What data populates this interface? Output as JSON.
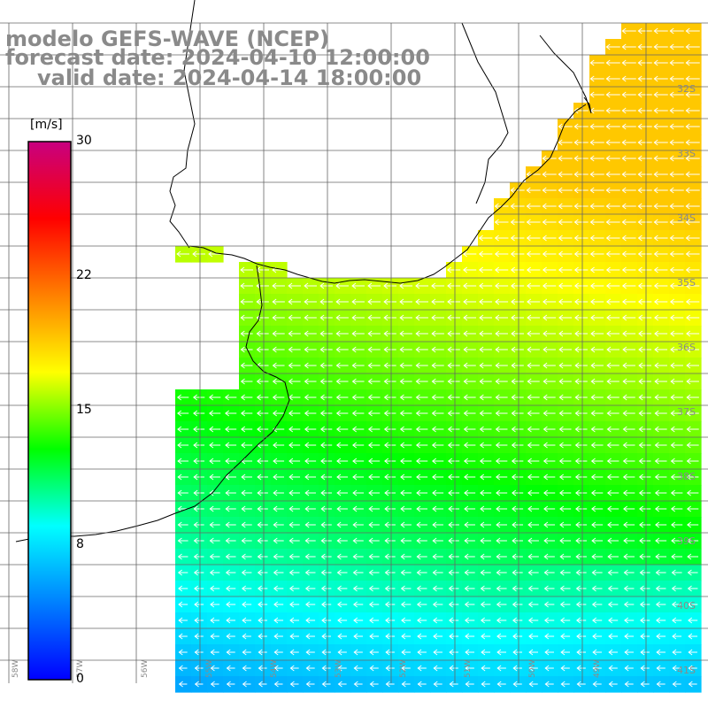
{
  "title": {
    "line1": "modelo GEFS-WAVE (NCEP)",
    "line2": "forecast date: 2024-04-10 12:00:00",
    "line3": "valid date: 2024-04-14 18:00:00"
  },
  "colorbar": {
    "unit": "[m/s]",
    "ticks": [
      "30",
      "22",
      "15",
      "8",
      "0"
    ],
    "tick_values": [
      30,
      22,
      15,
      8,
      0
    ],
    "min": 0,
    "max": 30,
    "colors": [
      "#0000ff",
      "#0080ff",
      "#00ffff",
      "#00ff00",
      "#ffff00",
      "#ff8000",
      "#ff0000",
      "#c80080"
    ]
  },
  "lat_labels": [
    "32S",
    "33S",
    "34S",
    "35S",
    "36S",
    "37S",
    "38S",
    "39S",
    "40S",
    "41S"
  ],
  "lon_labels": [
    "58W",
    "57W",
    "56W",
    "55W",
    "54W",
    "53W",
    "52W",
    "51W",
    "50W",
    "49W"
  ],
  "colors": {
    "land": "#ffffff",
    "coast": "#000000",
    "grid": "#666666",
    "arrows": "#ffffff",
    "title": "#8a8a8a",
    "lat_label": "#8a8a8a"
  }
}
